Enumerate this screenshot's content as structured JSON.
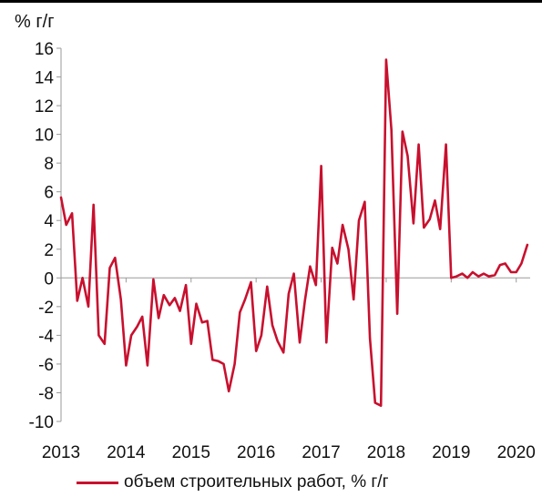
{
  "chart_data": {
    "type": "line",
    "ylabel": "% г/г",
    "ylim": [
      -10,
      16
    ],
    "yticks": [
      "16",
      "14",
      "12",
      "10",
      "8",
      "6",
      "4",
      "2",
      "0",
      "-2",
      "-4",
      "-6",
      "-8",
      "-10"
    ],
    "ytick_values": [
      16,
      14,
      12,
      10,
      8,
      6,
      4,
      2,
      0,
      -2,
      -4,
      -6,
      -8,
      -10
    ],
    "xlim": [
      2013.0,
      2020.2
    ],
    "xticks": [
      "2013",
      "2014",
      "2015",
      "2016",
      "2017",
      "2018",
      "2019",
      "2020"
    ],
    "xtick_values": [
      2013,
      2014,
      2015,
      2016,
      2017,
      2018,
      2019,
      2020
    ],
    "color": "#c8102e",
    "series": [
      {
        "name": "объем строительных работ, % г/г",
        "x": [
          2013.0,
          2013.08,
          2013.17,
          2013.25,
          2013.33,
          2013.42,
          2013.5,
          2013.58,
          2013.67,
          2013.75,
          2013.83,
          2013.92,
          2014.0,
          2014.08,
          2014.17,
          2014.25,
          2014.33,
          2014.42,
          2014.5,
          2014.58,
          2014.67,
          2014.75,
          2014.83,
          2014.92,
          2015.0,
          2015.08,
          2015.17,
          2015.25,
          2015.33,
          2015.42,
          2015.5,
          2015.58,
          2015.67,
          2015.75,
          2015.83,
          2015.92,
          2016.0,
          2016.08,
          2016.17,
          2016.25,
          2016.33,
          2016.42,
          2016.5,
          2016.58,
          2016.67,
          2016.75,
          2016.83,
          2016.92,
          2017.0,
          2017.08,
          2017.17,
          2017.25,
          2017.33,
          2017.42,
          2017.5,
          2017.58,
          2017.67,
          2017.75,
          2017.83,
          2017.92,
          2018.0,
          2018.08,
          2018.17,
          2018.25,
          2018.33,
          2018.42,
          2018.5,
          2018.58,
          2018.67,
          2018.75,
          2018.83,
          2018.92,
          2019.0,
          2019.08,
          2019.17,
          2019.25,
          2019.33,
          2019.42,
          2019.5,
          2019.58,
          2019.67,
          2019.75,
          2019.83,
          2019.92,
          2020.0,
          2020.08,
          2020.17
        ],
        "values": [
          5.6,
          3.7,
          4.5,
          -1.6,
          0.0,
          -2.0,
          5.1,
          -4.0,
          -4.6,
          0.7,
          1.4,
          -1.5,
          -6.1,
          -4.0,
          -3.4,
          -2.7,
          -6.1,
          -0.1,
          -2.8,
          -1.2,
          -1.9,
          -1.4,
          -2.3,
          -0.5,
          -4.6,
          -1.8,
          -3.1,
          -3.0,
          -5.7,
          -5.8,
          -6.0,
          -7.9,
          -6.0,
          -2.4,
          -1.5,
          -0.3,
          -5.1,
          -4.0,
          -0.6,
          -3.3,
          -4.4,
          -5.2,
          -1.1,
          0.3,
          -4.5,
          -1.6,
          0.8,
          -0.5,
          7.8,
          -4.5,
          2.1,
          1.0,
          3.7,
          2.0,
          -1.5,
          4.0,
          5.3,
          -4.2,
          -8.7,
          -8.9,
          15.2,
          10.3,
          -2.5,
          10.2,
          8.5,
          3.8,
          9.3,
          3.5,
          4.1,
          5.4,
          3.4,
          9.3,
          0.0,
          0.1,
          0.3,
          0.0,
          0.4,
          0.1,
          0.3,
          0.1,
          0.2,
          0.9,
          1.0,
          0.4,
          0.4,
          1.0,
          2.3
        ]
      }
    ],
    "grid": false,
    "legend": "bottom"
  }
}
